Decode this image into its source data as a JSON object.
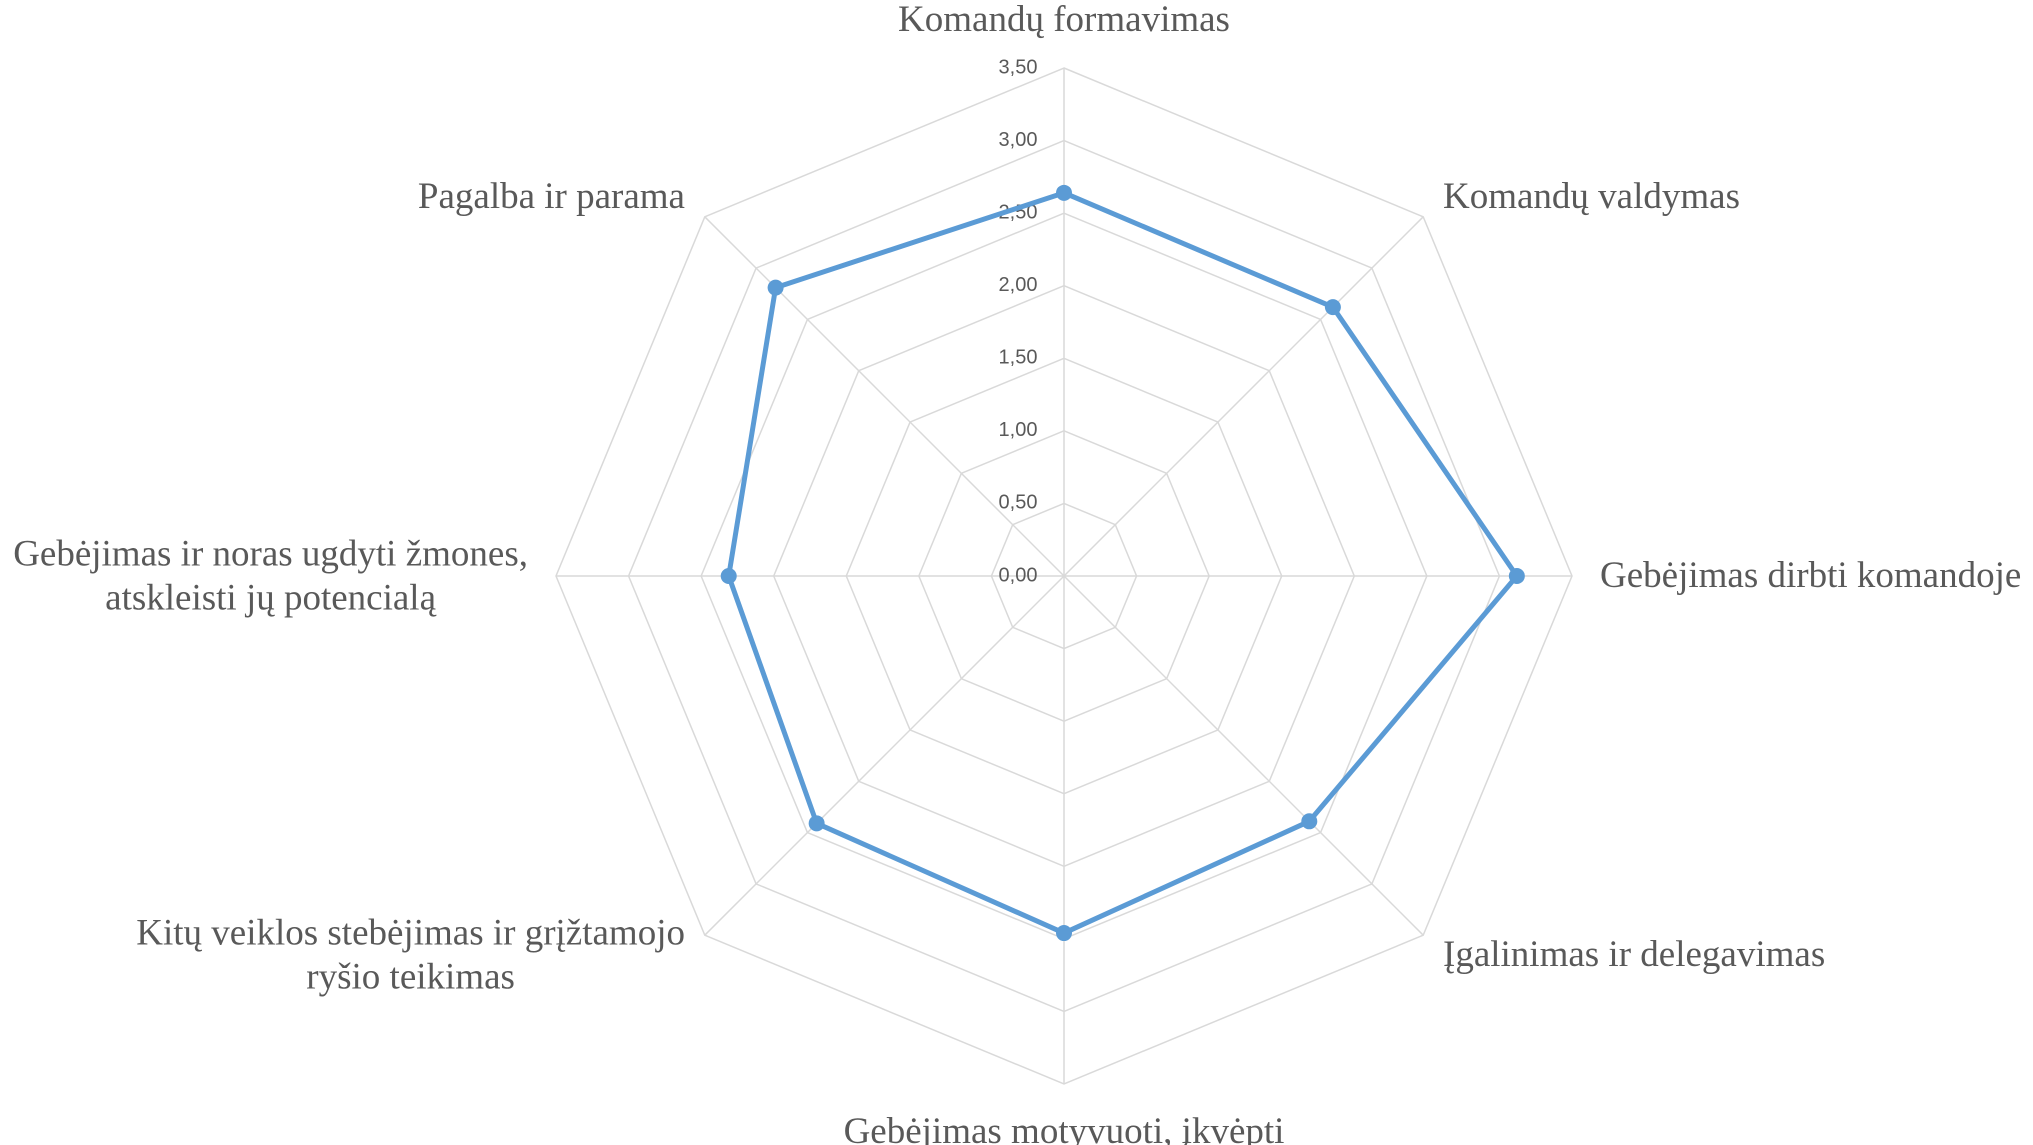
{
  "chart_data": {
    "type": "radar",
    "categories": [
      "Komandų formavimas",
      "Komandų valdymas",
      "Gebėjimas dirbti komandoje",
      "Įgalinimas ir delegavimas",
      "Gebėjimas motyvuoti, įkvėpti",
      "Kitų veiklos stebėjimas ir grįžtamojo\nryšio teikimas",
      "Gebėjimas ir noras ugdyti žmones,\natskleisti jų potencialą",
      "Pagalba ir parama"
    ],
    "series": [
      {
        "color": "#5b9bd5",
        "values": [
          2.64,
          2.62,
          3.12,
          2.39,
          2.46,
          2.41,
          2.31,
          2.81
        ]
      }
    ],
    "rlim": [
      0,
      3.5
    ],
    "rticks": [
      {
        "value": 0,
        "label": "0,00"
      },
      {
        "value": 0.5,
        "label": "0,50"
      },
      {
        "value": 1,
        "label": "1,00"
      },
      {
        "value": 1.5,
        "label": "1,50"
      },
      {
        "value": 2,
        "label": "2,00"
      },
      {
        "value": 2.5,
        "label": "2,50"
      },
      {
        "value": 3,
        "label": "3,00"
      },
      {
        "value": 3.5,
        "label": "3,50"
      }
    ],
    "grid": true
  }
}
